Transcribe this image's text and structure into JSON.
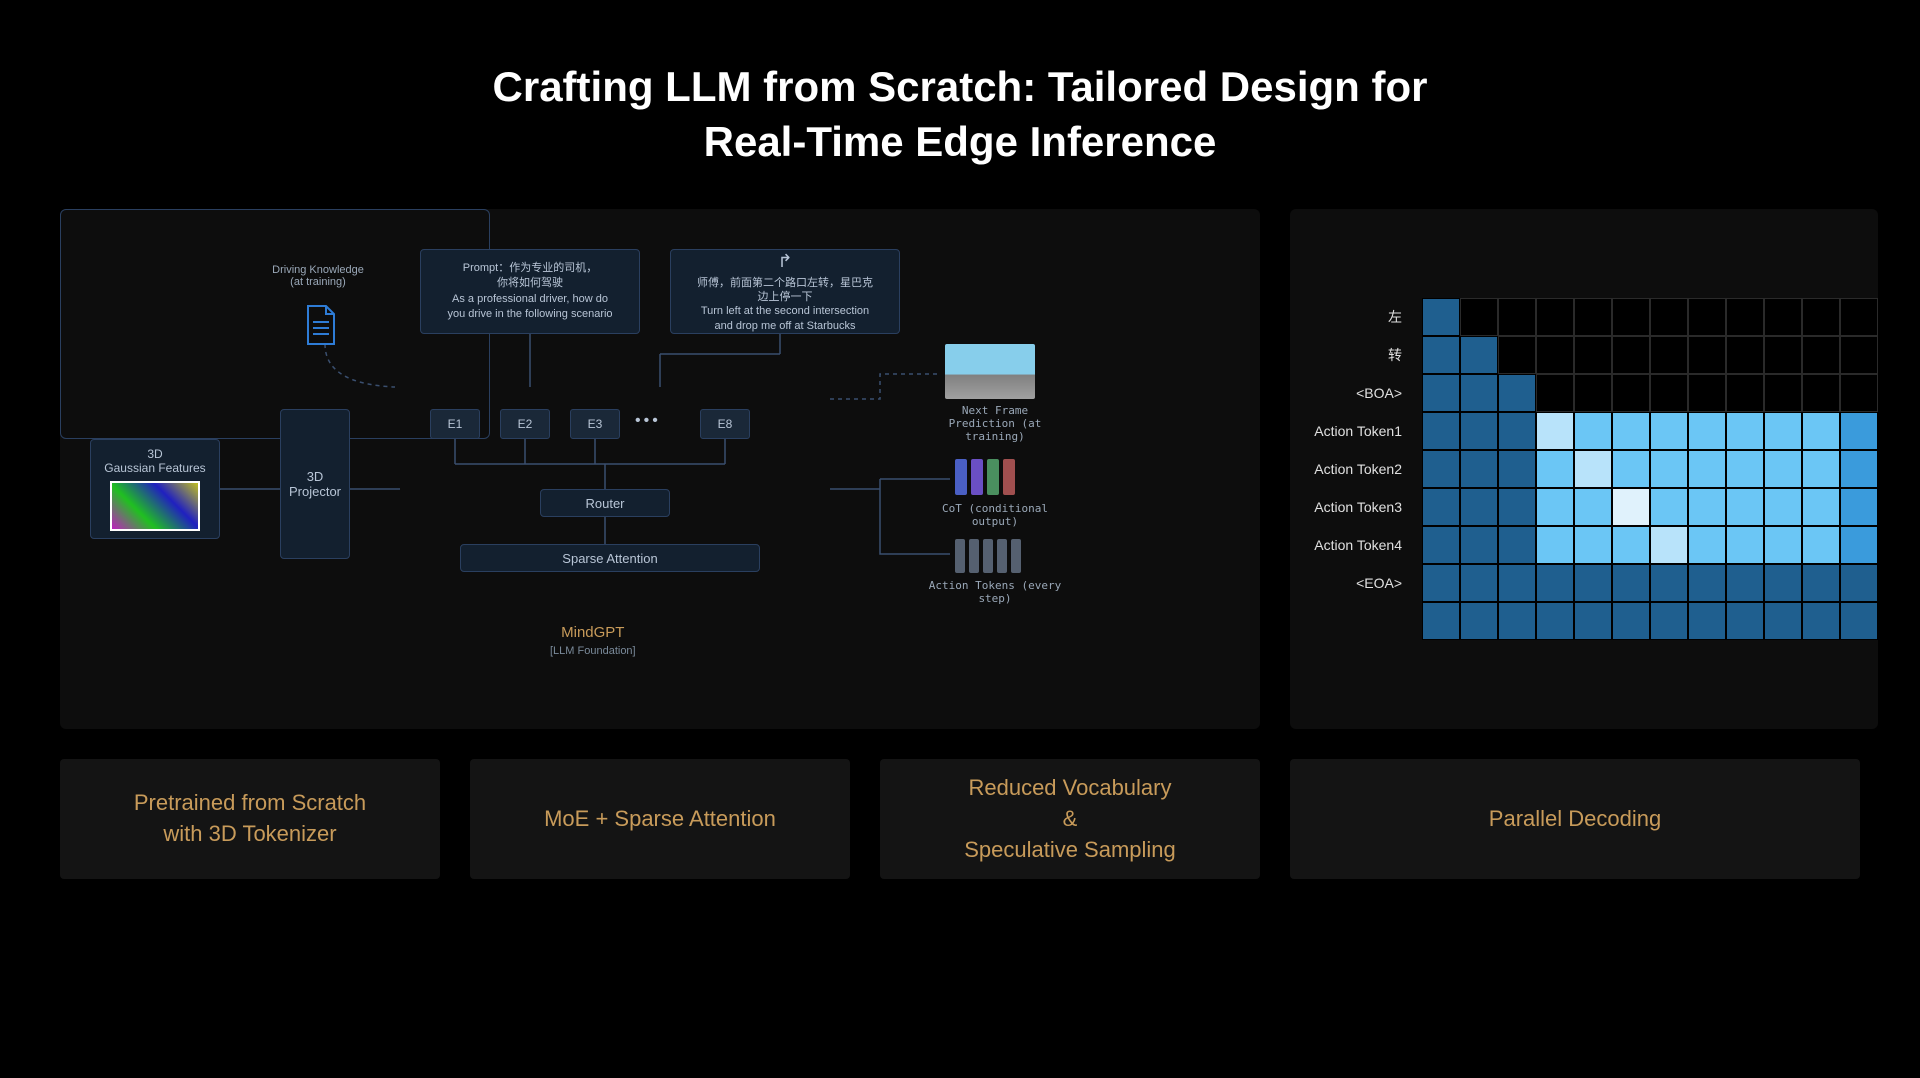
{
  "title_line1": "Crafting LLM from Scratch: Tailored Design for",
  "title_line2": "Real-Time Edge Inference",
  "cards": {
    "c1": "Pretrained from Scratch\nwith 3D Tokenizer",
    "c2": "MoE + Sparse Attention",
    "c3": "Reduced Vocabulary\n&\nSpeculative Sampling",
    "c4": "Parallel Decoding"
  },
  "arch": {
    "doc_label": "Driving Knowledge\n(at training)",
    "gaussian": "3D\nGaussian Features",
    "projector": "3D\nProjector",
    "experts": {
      "e1": "E1",
      "e2": "E2",
      "e3": "E3",
      "e8": "E8",
      "dots": "•••"
    },
    "router": "Router",
    "sparse": "Sparse Attention",
    "mindgpt": "MindGPT",
    "mindgpt_sub": "[LLM Foundation]",
    "prompt": "Prompt：作为专业的司机，\n你将如何驾驶\nAs a professional driver, how do\nyou drive in the following scenario",
    "instruction": "师傅，前面第二个路口左转，星巴克\n边上停一下\nTurn left at the second intersection\nand drop me off at Starbucks",
    "frame_label": "Next Frame Prediction (at\ntraining)",
    "cot_label": "CoT (conditional output)",
    "cot_colors": [
      "#4a5fc4",
      "#6a4fc4",
      "#4a8f5f",
      "#a04f4f"
    ],
    "action_label": "Action Tokens (every step)"
  },
  "heatmap": {
    "row_labels": [
      "左",
      "转",
      "<BOA>",
      "Action Token1",
      "Action Token2",
      "Action Token3",
      "Action Token4",
      "<EOA>",
      ""
    ],
    "grid": [
      [
        1,
        0,
        0,
        0,
        0,
        0,
        0,
        0,
        0,
        0,
        0,
        0
      ],
      [
        1,
        1,
        0,
        0,
        0,
        0,
        0,
        0,
        0,
        0,
        0,
        0
      ],
      [
        1,
        1,
        1,
        0,
        0,
        0,
        0,
        0,
        0,
        0,
        0,
        0
      ],
      [
        1,
        1,
        1,
        4,
        3,
        3,
        3,
        3,
        3,
        3,
        3,
        2
      ],
      [
        1,
        1,
        1,
        3,
        4,
        3,
        3,
        3,
        3,
        3,
        3,
        2
      ],
      [
        1,
        1,
        1,
        3,
        3,
        5,
        3,
        3,
        3,
        3,
        3,
        2
      ],
      [
        1,
        1,
        1,
        3,
        3,
        3,
        4,
        3,
        3,
        3,
        3,
        2
      ],
      [
        1,
        1,
        1,
        1,
        1,
        1,
        1,
        1,
        1,
        1,
        1,
        1
      ],
      [
        1,
        1,
        1,
        1,
        1,
        1,
        1,
        1,
        1,
        1,
        1,
        1
      ]
    ],
    "palette": {
      "0": "#000000",
      "1": "#1f5f8f",
      "2": "#3a9bdc",
      "3": "#6bc6f5",
      "4": "#b8e3fa",
      "5": "#e0f2fc"
    },
    "cell_size": 38
  },
  "colors": {
    "background": "#000000",
    "panel": "#0d0d0d",
    "card_bg": "#141414",
    "card_text": "#c89b5a",
    "box_border": "#2a3f5f",
    "box_bg": "#13202f"
  }
}
